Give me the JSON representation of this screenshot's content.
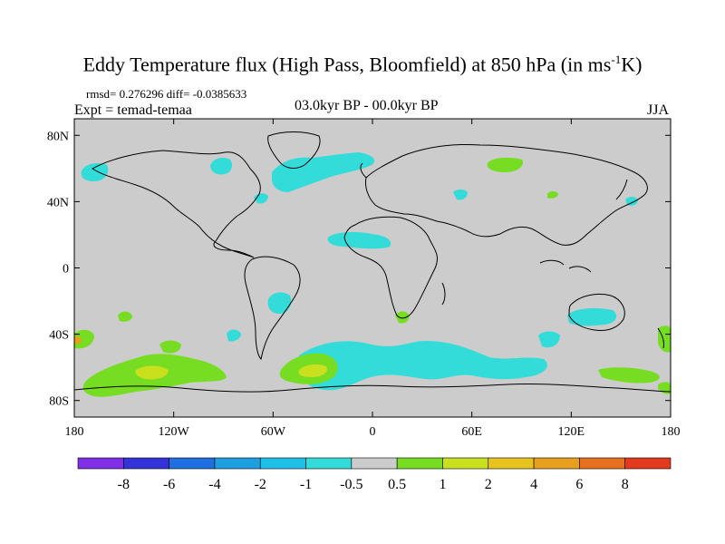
{
  "figure": {
    "title_main": "Eddy Temperature flux (High Pass, Bloomfield) at 850 hPa (in ms",
    "title_sup": "-1",
    "title_end": "K)",
    "stats": "rmsd= 0.276296 diff= -0.0385633",
    "experiment": "Expt = temad-temaa",
    "period": "03.0kyr BP - 00.0kyr BP",
    "season": "JJA"
  },
  "axes": {
    "lon_ticks": [
      "180",
      "120W",
      "60W",
      "0",
      "60E",
      "120E",
      "180"
    ],
    "lat_ticks": [
      "80N",
      "40N",
      "0",
      "40S",
      "80S"
    ]
  },
  "colorbar": {
    "labels": [
      "-8",
      "-6",
      "-4",
      "-2",
      "-1",
      "-0.5",
      "0.5",
      "1",
      "2",
      "4",
      "6",
      "8"
    ],
    "colors": [
      "#7f2fe6",
      "#3333d8",
      "#1f6fe0",
      "#1e9fe0",
      "#20bfe8",
      "#33dcd9",
      "#cccccc",
      "#77dd22",
      "#c8e01e",
      "#e6c31e",
      "#e6a01e",
      "#e6701e",
      "#e23a1e"
    ]
  },
  "chart_data": {
    "type": "heatmap",
    "title": "Eddy Temperature flux (High Pass, Bloomfield) at 850 hPa (in ms-1K)",
    "projection": "cylindrical equidistant",
    "xlim": [
      -180,
      180
    ],
    "ylim": [
      -90,
      90
    ],
    "x_ticks": [
      "180",
      "120W",
      "60W",
      "0",
      "60E",
      "120E",
      "180"
    ],
    "y_ticks": [
      "80N",
      "40N",
      "0",
      "40S",
      "80S"
    ],
    "levels": [
      -8,
      -6,
      -4,
      -2,
      -1,
      -0.5,
      0.5,
      1,
      2,
      4,
      6,
      8
    ],
    "background_value_range": [
      -0.5,
      0.5
    ],
    "regions": [
      {
        "name": "north-atlantic-neg",
        "lon": [
          -60,
          0
        ],
        "lat": [
          45,
          72
        ],
        "band": [
          -1,
          -0.5
        ]
      },
      {
        "name": "labrador-neg",
        "lon": [
          -95,
          -80
        ],
        "lat": [
          55,
          68
        ],
        "band": [
          -1,
          -0.5
        ]
      },
      {
        "name": "alaska-neg",
        "lon": [
          -170,
          -155
        ],
        "lat": [
          55,
          65
        ],
        "band": [
          -1,
          -0.5
        ]
      },
      {
        "name": "siberia-pos",
        "lon": [
          70,
          90
        ],
        "lat": [
          60,
          68
        ],
        "band": [
          0.5,
          1
        ]
      },
      {
        "name": "sahara-neg",
        "lon": [
          -25,
          10
        ],
        "lat": [
          15,
          22
        ],
        "band": [
          -1,
          -0.5
        ]
      },
      {
        "name": "brazil-neg",
        "lon": [
          -60,
          -50
        ],
        "lat": [
          -20,
          -10
        ],
        "band": [
          -1,
          -0.5
        ]
      },
      {
        "name": "south-africa-pos",
        "lon": [
          15,
          25
        ],
        "lat": [
          -32,
          -25
        ],
        "band": [
          0.5,
          1
        ]
      },
      {
        "name": "australia-neg",
        "lon": [
          120,
          140
        ],
        "lat": [
          -32,
          -25
        ],
        "band": [
          -1,
          -0.5
        ]
      },
      {
        "name": "south-pacific-pos",
        "lon": [
          -170,
          -100
        ],
        "lat": [
          -75,
          -55
        ],
        "band": [
          0.5,
          2
        ]
      },
      {
        "name": "south-atlantic-pos",
        "lon": [
          -55,
          -25
        ],
        "lat": [
          -72,
          -55
        ],
        "band": [
          0.5,
          2
        ]
      },
      {
        "name": "southern-ocean-neg",
        "lon": [
          -30,
          100
        ],
        "lat": [
          -75,
          -45
        ],
        "band": [
          -1,
          -0.5
        ]
      },
      {
        "name": "sw-pacific-pos",
        "lon": [
          140,
          175
        ],
        "lat": [
          -70,
          -60
        ],
        "band": [
          0.5,
          1
        ]
      }
    ]
  }
}
